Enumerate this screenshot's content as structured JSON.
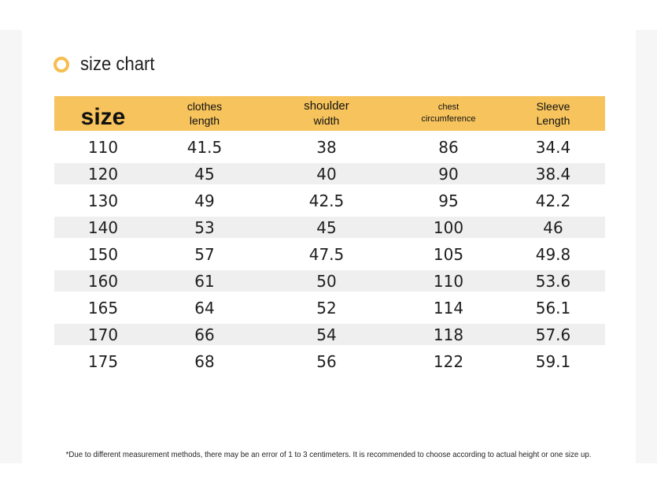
{
  "title": "size chart",
  "headers": {
    "size": "size",
    "clothes_line1": "clothes",
    "clothes_line2": "length",
    "shoulder_line1": "shoulder",
    "shoulder_line2": "width",
    "chest_line1": "chest",
    "chest_line2": "circumference",
    "sleeve_line1": "Sleeve",
    "sleeve_line2": "Length"
  },
  "rows": [
    [
      "110",
      "41.5",
      "38",
      "86",
      "34.4"
    ],
    [
      "120",
      "45",
      "40",
      "90",
      "38.4"
    ],
    [
      "130",
      "49",
      "42.5",
      "95",
      "42.2"
    ],
    [
      "140",
      "53",
      "45",
      "100",
      "46"
    ],
    [
      "150",
      "57",
      "47.5",
      "105",
      "49.8"
    ],
    [
      "160",
      "61",
      "50",
      "110",
      "53.6"
    ],
    [
      "165",
      "64",
      "52",
      "114",
      "56.1"
    ],
    [
      "170",
      "66",
      "54",
      "118",
      "57.6"
    ],
    [
      "175",
      "68",
      "56",
      "122",
      "59.1"
    ]
  ],
  "note": "*Due to different measurement methods, there may be an error of 1 to 3 centimeters. It is recommended to choose according to actual height or one size up.",
  "colors": {
    "header_bg": "#f6c35d",
    "ring": "#f6bd4f",
    "stripe": "#efefef"
  }
}
